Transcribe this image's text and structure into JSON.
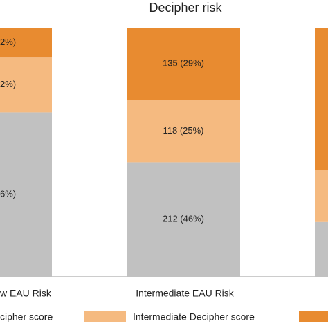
{
  "chart_data": {
    "type": "stacked-bar",
    "title": "Decipher risk",
    "categories": [
      "w EAU Risk",
      "Intermediate EAU Risk",
      null
    ],
    "series": [
      {
        "name": "cipher score",
        "color": "#c1c1c1",
        "values": [
          66,
          46,
          22
        ],
        "value_labels": [
          "6%)",
          "212 (46%)",
          null
        ]
      },
      {
        "name": "Intermediate Decipher score",
        "color": "#f5ba80",
        "values": [
          22,
          25,
          21
        ],
        "value_labels": [
          "2%)",
          "118 (25%)",
          null
        ]
      },
      {
        "name": null,
        "color": "#e88b30",
        "values": [
          12,
          29,
          57
        ],
        "value_labels": [
          "2%)",
          "135 (29%)",
          null
        ]
      }
    ],
    "ylim": [
      0,
      100
    ]
  }
}
